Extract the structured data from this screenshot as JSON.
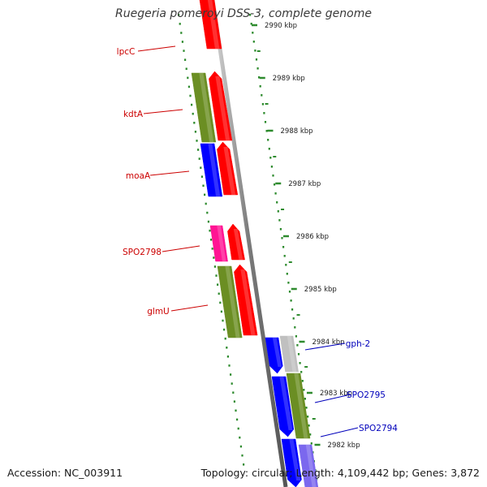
{
  "title": "Ruegeria pomeroyi DSS-3, complete genome",
  "footer": {
    "accession": "Accession: NC_003911",
    "summary": "Topology: circular; Length: 4,109,442 bp; Genes: 3,872"
  },
  "colors": {
    "backbone": "#8a8a8a",
    "ruler": "#2e8b2e",
    "label_left": "#cc0000",
    "label_right": "#0000bb",
    "red": "#ff0000",
    "olive": "#6b8e23",
    "blue": "#0000ff",
    "magenta": "#ff1493",
    "gray": "#c0c0c0",
    "lavender": "#7b68ee"
  },
  "ruler_ticks": [
    {
      "label": "2990 kbp"
    },
    {
      "label": "2989 kbp"
    },
    {
      "label": "2988 kbp"
    },
    {
      "label": "2987 kbp"
    },
    {
      "label": "2986 kbp"
    },
    {
      "label": "2985 kbp"
    },
    {
      "label": "2984 kbp"
    },
    {
      "label": "2983 kbp"
    },
    {
      "label": "2982 kbp"
    }
  ],
  "features": [
    {
      "name": "",
      "color": "red",
      "ring": "inner",
      "direction": "none"
    },
    {
      "name": "",
      "color": "olive",
      "ring": "outer",
      "direction": "none"
    },
    {
      "name": "",
      "color": "red",
      "ring": "inner",
      "direction": "forward"
    },
    {
      "name": "",
      "color": "blue",
      "ring": "outer",
      "direction": "none"
    },
    {
      "name": "",
      "color": "red",
      "ring": "inner",
      "direction": "forward"
    },
    {
      "name": "",
      "color": "magenta",
      "ring": "outer",
      "direction": "none"
    },
    {
      "name": "",
      "color": "red",
      "ring": "inner",
      "direction": "forward"
    },
    {
      "name": "",
      "color": "olive",
      "ring": "outer",
      "direction": "none"
    },
    {
      "name": "",
      "color": "red",
      "ring": "inner",
      "direction": "forward"
    },
    {
      "name": "",
      "color": "blue",
      "ring": "inner",
      "direction": "reverse"
    },
    {
      "name": "",
      "color": "gray",
      "ring": "outer",
      "direction": "none"
    },
    {
      "name": "",
      "color": "blue",
      "ring": "inner",
      "direction": "reverse"
    },
    {
      "name": "",
      "color": "olive",
      "ring": "outer",
      "direction": "none"
    },
    {
      "name": "",
      "color": "blue",
      "ring": "inner",
      "direction": "reverse"
    },
    {
      "name": "",
      "color": "lavender",
      "ring": "outer",
      "direction": "none"
    }
  ],
  "gene_labels": [
    {
      "text": "lpcC",
      "side": "left"
    },
    {
      "text": "kdtA",
      "side": "left"
    },
    {
      "text": "moaA",
      "side": "left"
    },
    {
      "text": "SPO2798",
      "side": "left"
    },
    {
      "text": "glmU",
      "side": "left"
    },
    {
      "text": "gph-2",
      "side": "right"
    },
    {
      "text": "SPO2795",
      "side": "right"
    },
    {
      "text": "SPO2794",
      "side": "right"
    }
  ]
}
